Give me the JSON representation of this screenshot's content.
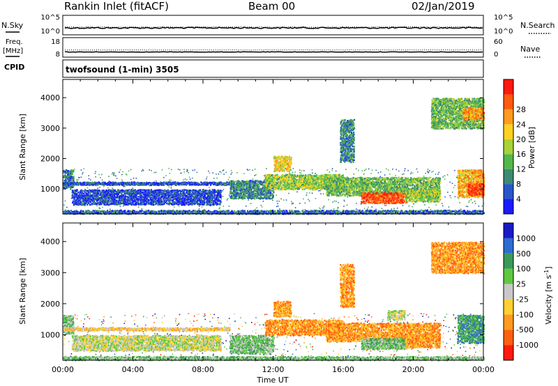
{
  "header": {
    "station": "Rankin Inlet (fitACF)",
    "beam": "Beam 00",
    "date": "02/Jan/2019"
  },
  "noise_panel": {
    "left_label": "N.Sky",
    "left_ticks": [
      "10^5",
      "10^0"
    ],
    "right_ticks": [
      "10^5",
      "10^0"
    ],
    "right_label": "N.Search",
    "sky_level_log10": 0.35,
    "search_level_log10": 0.4
  },
  "freq_panel": {
    "left_label_1": "Freq.",
    "left_label_2": "[MHz]",
    "left_ticks": [
      "18",
      "8"
    ],
    "right_ticks": [
      "60",
      "0"
    ],
    "right_label": "Nave",
    "freq_mhz": 10.5,
    "nave": 22
  },
  "cpid_panel": {
    "label": "CPID",
    "text": "twofsound (1-min) 3505"
  },
  "chart_data": [
    {
      "type": "heatmap",
      "panel": "power",
      "xlabel": "",
      "ylabel": "Slant Range [km]",
      "yticks": [
        "1000",
        "2000",
        "3000",
        "4000"
      ],
      "ylim": [
        180,
        4600
      ],
      "xlim_hours": [
        0,
        24
      ],
      "colorbar": {
        "label": "Power [dB]",
        "ticks": [
          "4",
          "8",
          "12",
          "16",
          "20",
          "24",
          "28"
        ],
        "colors": [
          "#1a1aff",
          "#2856c8",
          "#3d8a72",
          "#53b84a",
          "#a8d23a",
          "#ffd21e",
          "#ff9a1e",
          "#ff5a10",
          "#ff1a10"
        ],
        "range": [
          0,
          30
        ]
      },
      "regions": [
        {
          "t0": 0.0,
          "t1": 24.0,
          "r0": 200,
          "r1": 320,
          "level": 6
        },
        {
          "t0": 0.0,
          "t1": 0.6,
          "r0": 1050,
          "r1": 1650,
          "level": 7
        },
        {
          "t0": 0.0,
          "t1": 9.5,
          "r0": 1150,
          "r1": 1250,
          "level": 5
        },
        {
          "t0": 0.5,
          "t1": 9.0,
          "r0": 500,
          "r1": 1000,
          "level": 4
        },
        {
          "t0": 9.5,
          "t1": 12.0,
          "r0": 700,
          "r1": 1300,
          "level": 8
        },
        {
          "t0": 12.0,
          "t1": 13.0,
          "r0": 1600,
          "r1": 2100,
          "level": 18
        },
        {
          "t0": 11.5,
          "t1": 16.0,
          "r0": 1000,
          "r1": 1500,
          "level": 14
        },
        {
          "t0": 15.8,
          "t1": 16.6,
          "r0": 1900,
          "r1": 3300,
          "level": 8
        },
        {
          "t0": 15.0,
          "t1": 21.5,
          "r0": 800,
          "r1": 1400,
          "level": 12
        },
        {
          "t0": 17.0,
          "t1": 19.6,
          "r0": 550,
          "r1": 900,
          "level": 26
        },
        {
          "t0": 19.5,
          "t1": 21.5,
          "r0": 600,
          "r1": 1000,
          "level": 14
        },
        {
          "t0": 22.5,
          "t1": 24.0,
          "r0": 750,
          "r1": 1650,
          "level": 20
        },
        {
          "t0": 23.1,
          "t1": 24.0,
          "r0": 800,
          "r1": 1200,
          "level": 27
        },
        {
          "t0": 21.0,
          "t1": 24.0,
          "r0": 3000,
          "r1": 4000,
          "level": 12
        },
        {
          "t0": 22.8,
          "t1": 24.0,
          "r0": 3300,
          "r1": 3700,
          "level": 22
        }
      ]
    },
    {
      "type": "heatmap",
      "panel": "velocity",
      "xlabel": "Time UT",
      "ylabel": "Slant Range [km]",
      "yticks": [
        "1000",
        "2000",
        "3000",
        "4000"
      ],
      "ylim": [
        180,
        4600
      ],
      "xlim_hours": [
        0,
        24
      ],
      "xticks": [
        "00:00",
        "04:00",
        "08:00",
        "12:00",
        "16:00",
        "20:00",
        "00:00"
      ],
      "colorbar": {
        "label": "Velocity [m s",
        "label_sup": "-1",
        "label_end": "]",
        "ticks": [
          "1000",
          "500",
          "100",
          "25",
          "-25",
          "-100",
          "-500",
          "-1000"
        ],
        "colors": [
          "#1a1ac8",
          "#2e6dd0",
          "#3a9a5a",
          "#60c840",
          "#c8c8c8",
          "#ffd030",
          "#ff9a20",
          "#ff6010",
          "#ff1a10"
        ],
        "range": [
          -1000,
          1000
        ]
      },
      "regions": [
        {
          "t0": 0.0,
          "t1": 24.0,
          "r0": 200,
          "r1": 320,
          "level": 3
        },
        {
          "t0": 0.0,
          "t1": 0.6,
          "r0": 1050,
          "r1": 1650,
          "level": 3
        },
        {
          "t0": 0.0,
          "t1": 9.5,
          "r0": 1150,
          "r1": 1250,
          "level": 5
        },
        {
          "t0": 0.5,
          "t1": 9.0,
          "r0": 500,
          "r1": 1000,
          "level": 4
        },
        {
          "t0": 9.5,
          "t1": 12.0,
          "r0": 400,
          "r1": 1000,
          "level": 3
        },
        {
          "t0": 12.0,
          "t1": 13.0,
          "r0": 1600,
          "r1": 2100,
          "level": 6
        },
        {
          "t0": 11.5,
          "t1": 16.0,
          "r0": 1000,
          "r1": 1500,
          "level": 6
        },
        {
          "t0": 15.8,
          "t1": 16.6,
          "r0": 1900,
          "r1": 3300,
          "level": 6
        },
        {
          "t0": 15.0,
          "t1": 21.5,
          "r0": 800,
          "r1": 1400,
          "level": 6
        },
        {
          "t0": 17.0,
          "t1": 19.6,
          "r0": 550,
          "r1": 900,
          "level": 3
        },
        {
          "t0": 18.5,
          "t1": 19.5,
          "r0": 1500,
          "r1": 1800,
          "level": 4
        },
        {
          "t0": 19.5,
          "t1": 21.5,
          "r0": 600,
          "r1": 1000,
          "level": 6
        },
        {
          "t0": 22.5,
          "t1": 24.0,
          "r0": 750,
          "r1": 1650,
          "level": 2
        },
        {
          "t0": 21.0,
          "t1": 24.0,
          "r0": 3000,
          "r1": 4000,
          "level": 6
        }
      ]
    }
  ]
}
